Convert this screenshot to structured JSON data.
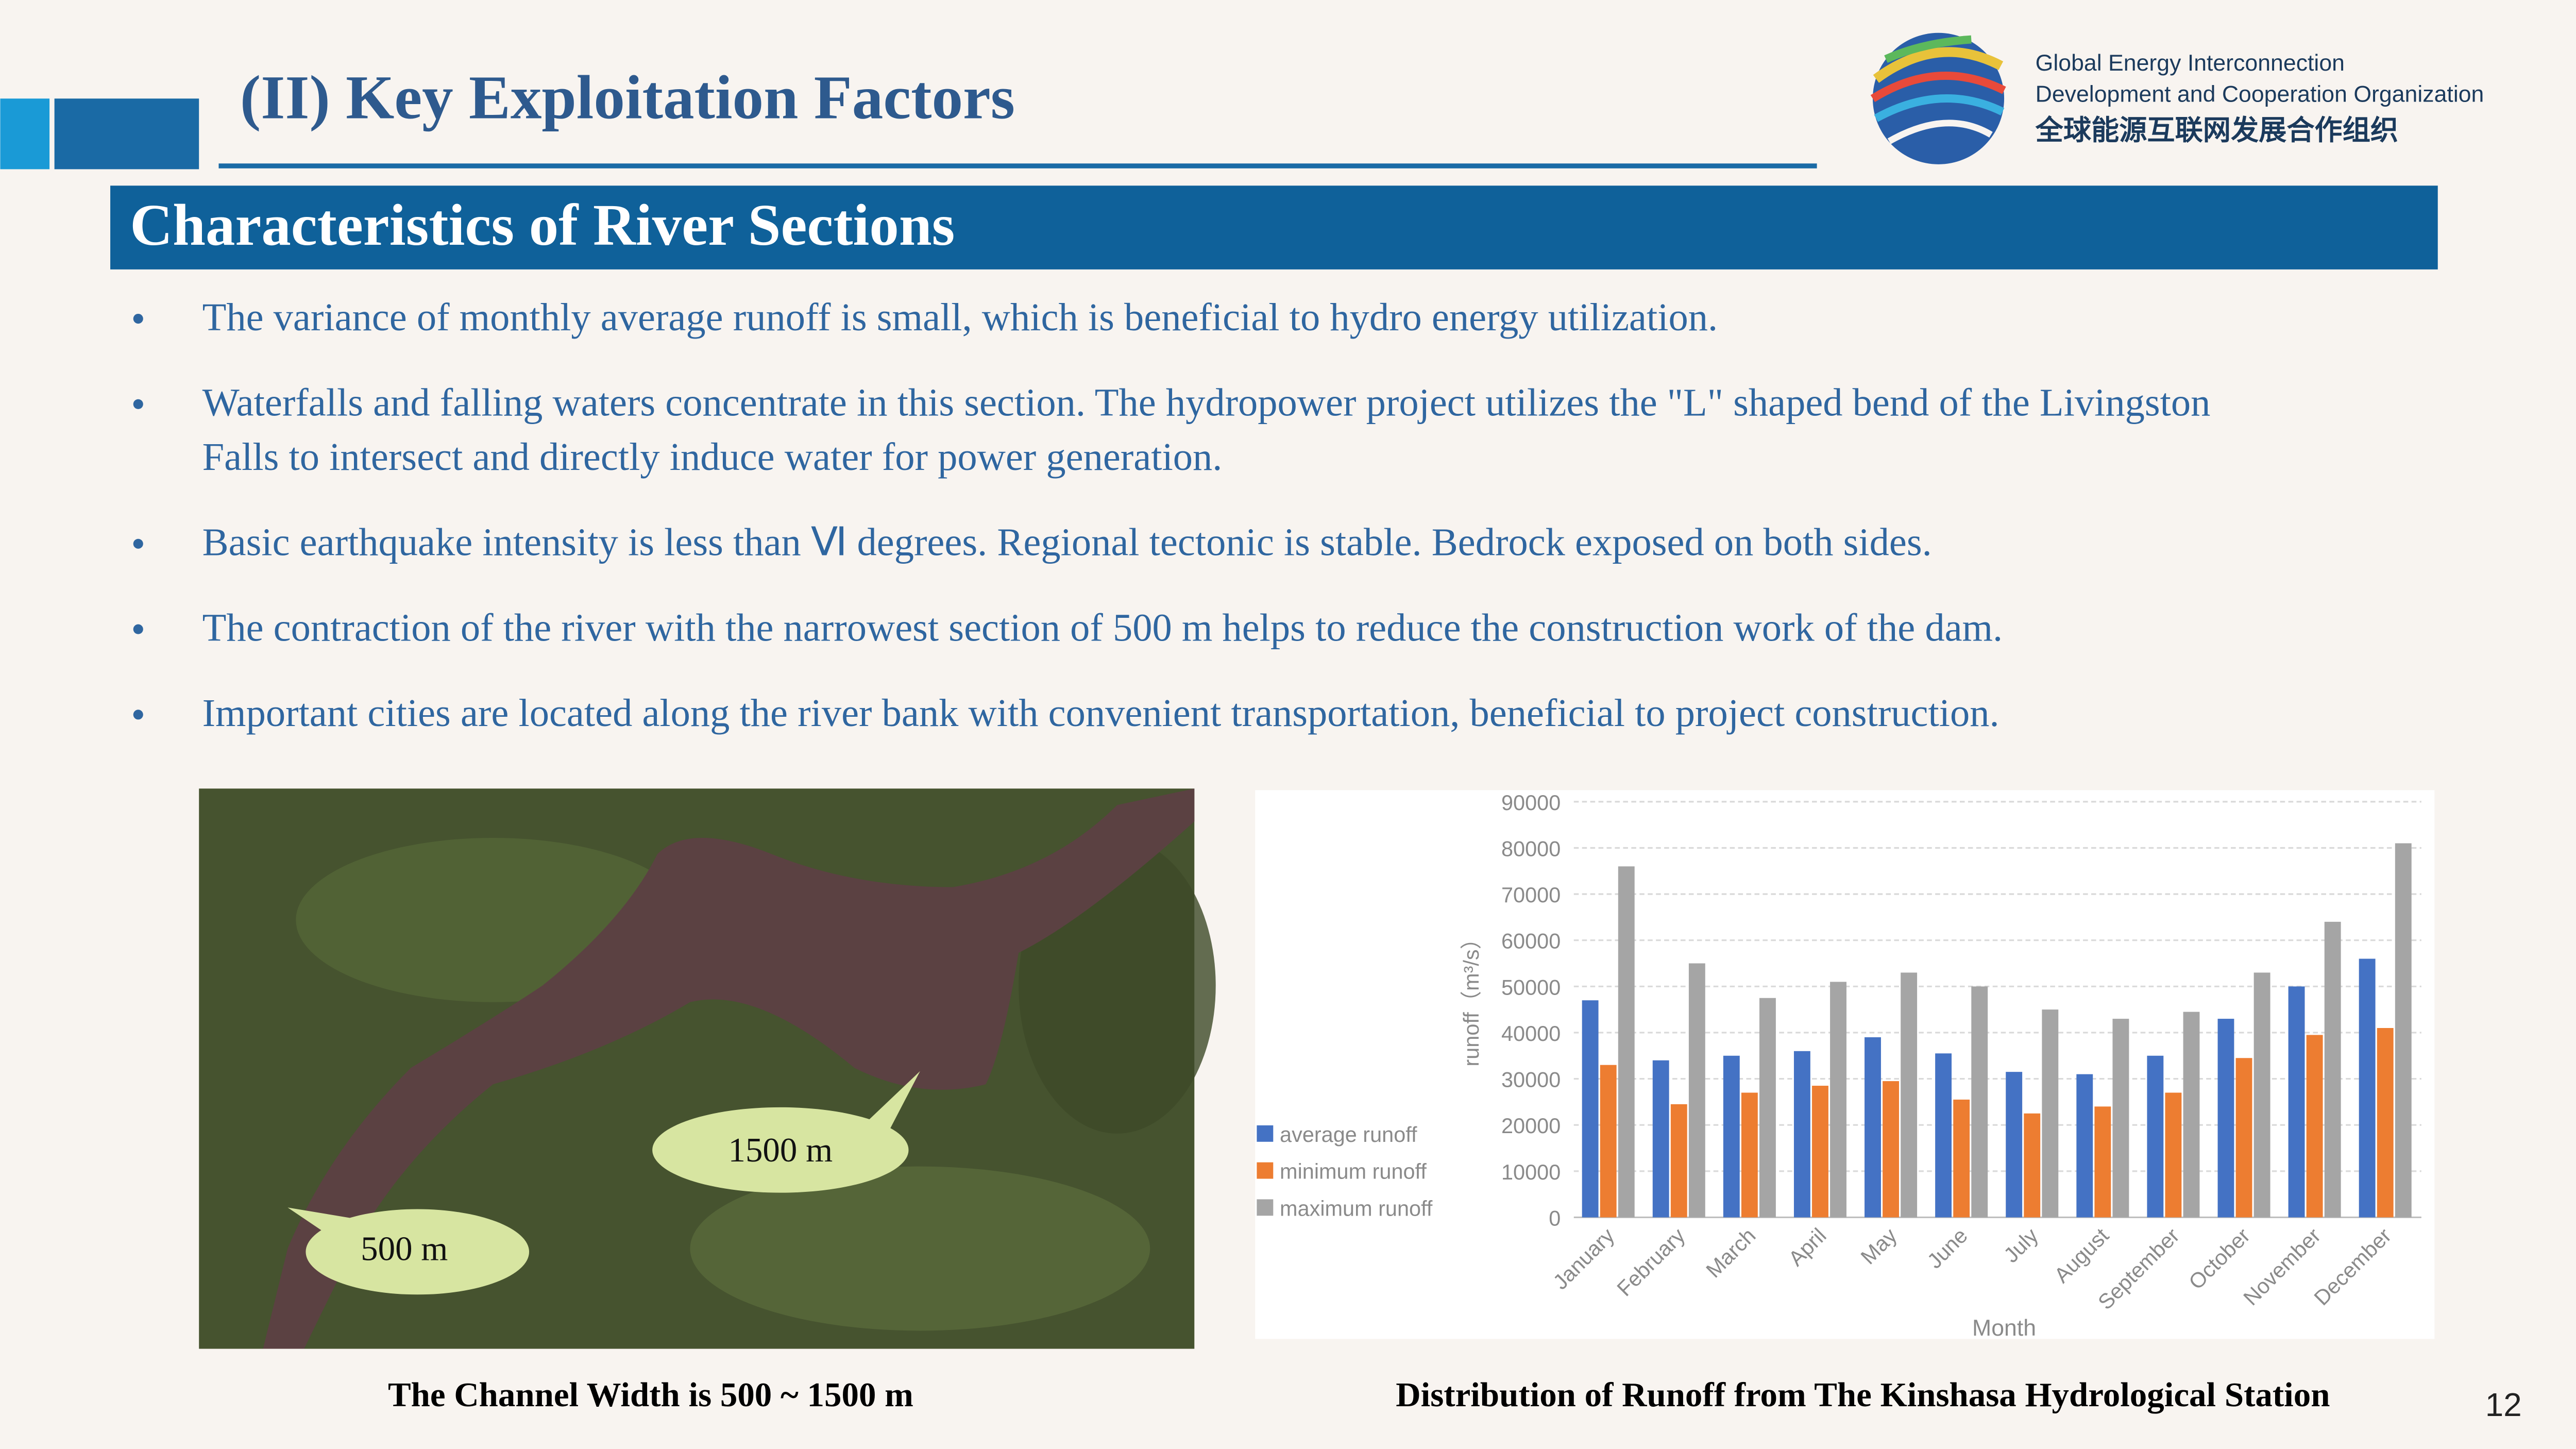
{
  "header": {
    "title": "(II) Key Exploitation Factors",
    "org": [
      "Global Energy Interconnection",
      "Development and Cooperation Organization",
      "全球能源互联网发展合作组织"
    ]
  },
  "section_title": "Characteristics of River Sections",
  "bullets": [
    [
      "The variance of monthly average runoff is small, which is beneficial to hydro energy utilization."
    ],
    [
      "Waterfalls and falling waters concentrate in this section. The hydropower project utilizes the \"L\" shaped bend of the Livingston",
      "Falls to intersect and directly induce water for power generation."
    ],
    [
      "Basic earthquake intensity is less than Ⅵ degrees. Regional tectonic is stable. Bedrock exposed on both sides."
    ],
    [
      "The contraction of the river with the  narrowest section of 500 m helps to reduce the construction work of the dam."
    ],
    [
      "Important cities are located along the river bank with convenient transportation, beneficial to project construction."
    ]
  ],
  "map": {
    "labels": [
      "1500 m",
      "500 m"
    ],
    "caption": "The Channel Width is 500 ~ 1500 m"
  },
  "chart_data": {
    "type": "bar",
    "caption": "Distribution of Runoff from The Kinshasa Hydrological Station",
    "x_label": "Month",
    "y_label": "runoff（m³/s）",
    "categories": [
      "January",
      "February",
      "March",
      "April",
      "May",
      "June",
      "July",
      "August",
      "September",
      "October",
      "November",
      "December"
    ],
    "series": [
      {
        "name": "average runoff",
        "color": "#4472c4",
        "values": [
          47000,
          34000,
          35000,
          36000,
          39000,
          35500,
          31500,
          31000,
          35000,
          43000,
          50000,
          56000
        ]
      },
      {
        "name": "minimum runoff",
        "color": "#ed7d31",
        "values": [
          33000,
          24500,
          27000,
          28500,
          29500,
          25500,
          22500,
          24000,
          27000,
          34500,
          39500,
          41000
        ]
      },
      {
        "name": "maximum runoff",
        "color": "#a5a5a5",
        "values": [
          76000,
          55000,
          47500,
          51000,
          53000,
          50000,
          45000,
          43000,
          44500,
          53000,
          64000,
          81000
        ]
      }
    ],
    "ylim": [
      0,
      90000
    ],
    "yticks": [
      0,
      10000,
      20000,
      30000,
      40000,
      50000,
      60000,
      70000,
      80000,
      90000
    ],
    "grid": true,
    "legend": "left"
  },
  "page_number": "12"
}
